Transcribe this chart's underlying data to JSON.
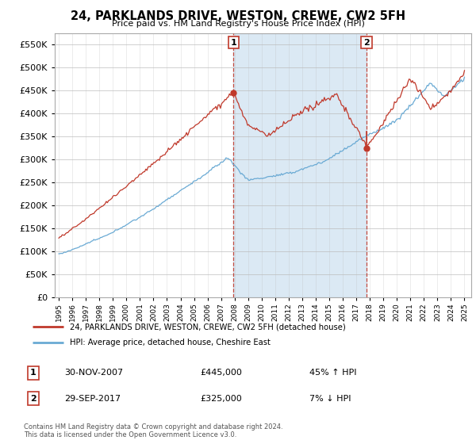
{
  "title": "24, PARKLANDS DRIVE, WESTON, CREWE, CW2 5FH",
  "subtitle": "Price paid vs. HM Land Registry's House Price Index (HPI)",
  "legend_line1": "24, PARKLANDS DRIVE, WESTON, CREWE, CW2 5FH (detached house)",
  "legend_line2": "HPI: Average price, detached house, Cheshire East",
  "marker1_date": "30-NOV-2007",
  "marker1_price": 445000,
  "marker1_pct": "45% ↑ HPI",
  "marker2_date": "29-SEP-2017",
  "marker2_price": 325000,
  "marker2_pct": "7% ↓ HPI",
  "footer": "Contains HM Land Registry data © Crown copyright and database right 2024.\nThis data is licensed under the Open Government Licence v3.0.",
  "hpi_color": "#6aaad4",
  "price_color": "#c0392b",
  "marker_color": "#c0392b",
  "shade_color": "#cce0f0",
  "plot_bg": "#ffffff",
  "ylim_min": 0,
  "ylim_max": 575000,
  "x_start_year": 1995,
  "x_end_year": 2025,
  "marker1_x": 2007.917,
  "marker2_x": 2017.75
}
